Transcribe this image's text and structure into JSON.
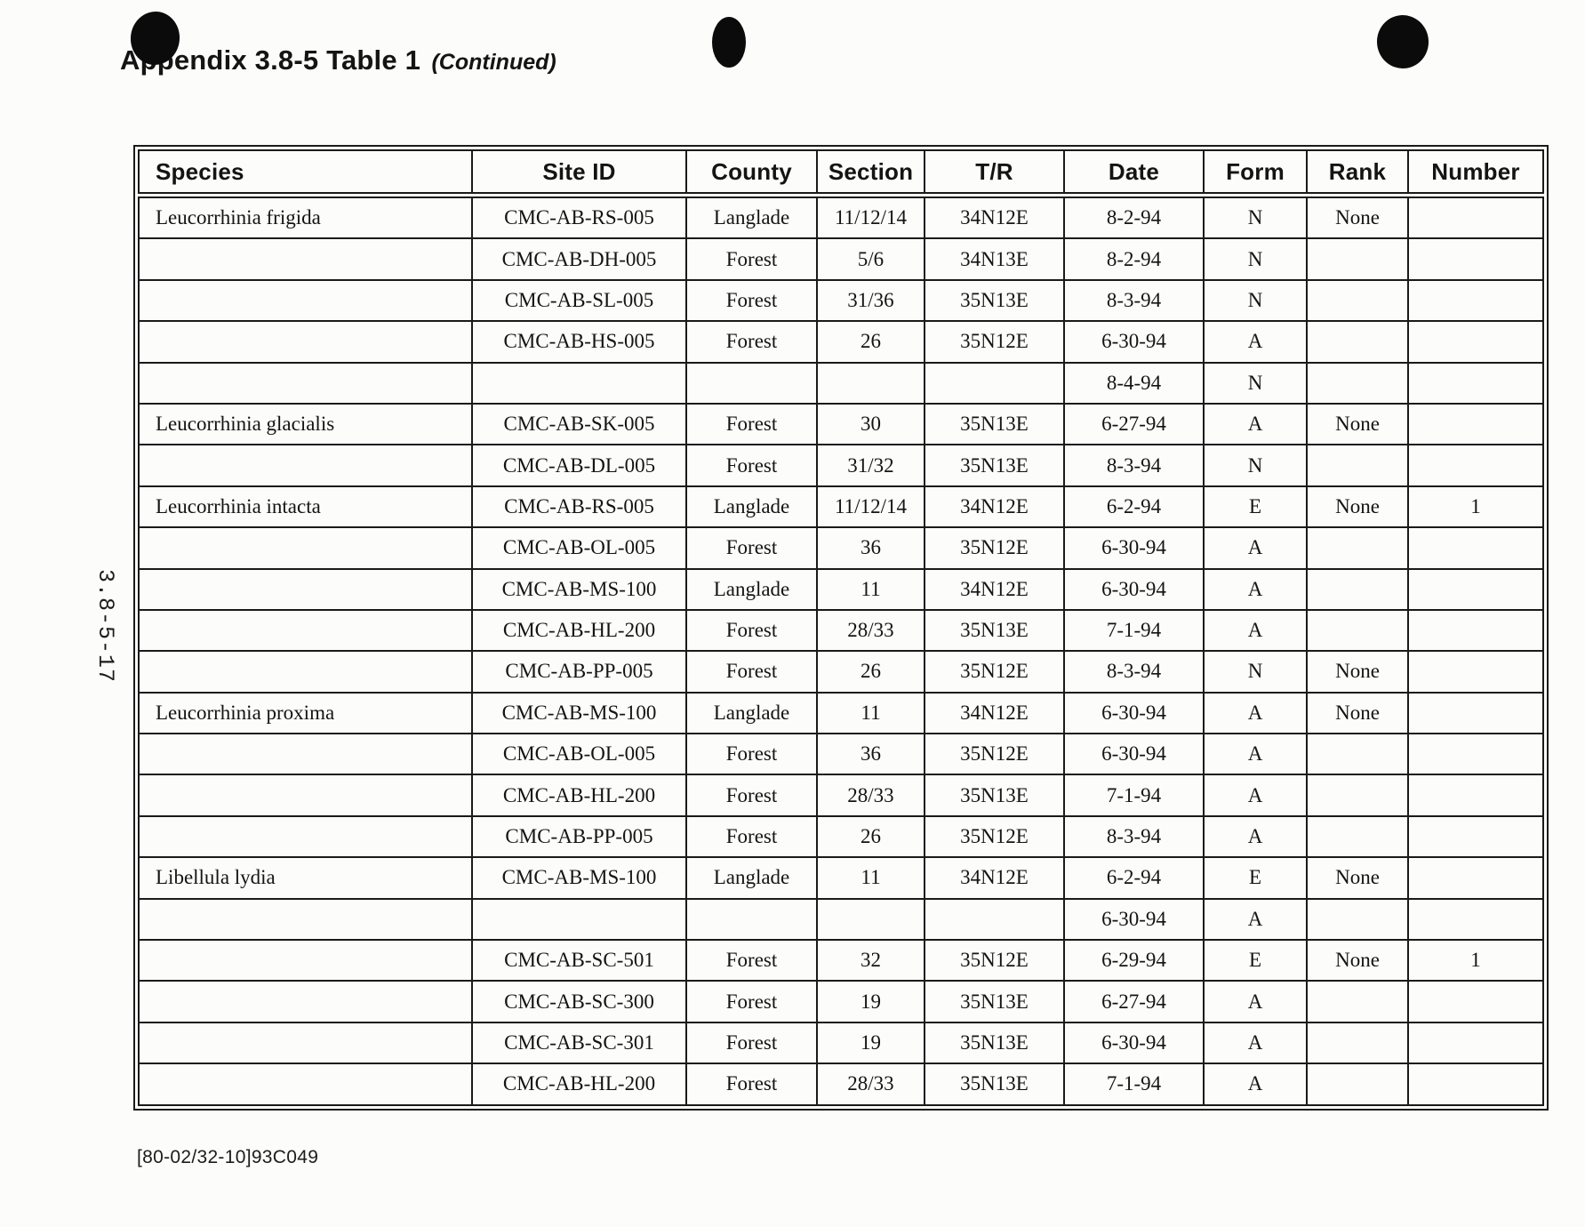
{
  "page": {
    "title": "Appendix 3.8-5 Table 1",
    "title_suffix": "(Continued)",
    "side_label": "3.8-5-17",
    "footer_code": "[80-02/32-10]93C049",
    "ink_color": "#141414",
    "paper_color": "#fcfcfa"
  },
  "table": {
    "columns": [
      "Species",
      "Site ID",
      "County",
      "Section",
      "T/R",
      "Date",
      "Form",
      "Rank",
      "Number"
    ],
    "rows": [
      [
        "Leucorrhinia frigida",
        "CMC-AB-RS-005",
        "Langlade",
        "11/12/14",
        "34N12E",
        "8-2-94",
        "N",
        "None",
        ""
      ],
      [
        "",
        "CMC-AB-DH-005",
        "Forest",
        "5/6",
        "34N13E",
        "8-2-94",
        "N",
        "",
        ""
      ],
      [
        "",
        "CMC-AB-SL-005",
        "Forest",
        "31/36",
        "35N13E",
        "8-3-94",
        "N",
        "",
        ""
      ],
      [
        "",
        "CMC-AB-HS-005",
        "Forest",
        "26",
        "35N12E",
        "6-30-94",
        "A",
        "",
        ""
      ],
      [
        "",
        "",
        "",
        "",
        "",
        "8-4-94",
        "N",
        "",
        ""
      ],
      [
        "Leucorrhinia glacialis",
        "CMC-AB-SK-005",
        "Forest",
        "30",
        "35N13E",
        "6-27-94",
        "A",
        "None",
        ""
      ],
      [
        "",
        "CMC-AB-DL-005",
        "Forest",
        "31/32",
        "35N13E",
        "8-3-94",
        "N",
        "",
        ""
      ],
      [
        "Leucorrhinia intacta",
        "CMC-AB-RS-005",
        "Langlade",
        "11/12/14",
        "34N12E",
        "6-2-94",
        "E",
        "None",
        "1"
      ],
      [
        "",
        "CMC-AB-OL-005",
        "Forest",
        "36",
        "35N12E",
        "6-30-94",
        "A",
        "",
        ""
      ],
      [
        "",
        "CMC-AB-MS-100",
        "Langlade",
        "11",
        "34N12E",
        "6-30-94",
        "A",
        "",
        ""
      ],
      [
        "",
        "CMC-AB-HL-200",
        "Forest",
        "28/33",
        "35N13E",
        "7-1-94",
        "A",
        "",
        ""
      ],
      [
        "",
        "CMC-AB-PP-005",
        "Forest",
        "26",
        "35N12E",
        "8-3-94",
        "N",
        "None",
        ""
      ],
      [
        "Leucorrhinia proxima",
        "CMC-AB-MS-100",
        "Langlade",
        "11",
        "34N12E",
        "6-30-94",
        "A",
        "None",
        ""
      ],
      [
        "",
        "CMC-AB-OL-005",
        "Forest",
        "36",
        "35N12E",
        "6-30-94",
        "A",
        "",
        ""
      ],
      [
        "",
        "CMC-AB-HL-200",
        "Forest",
        "28/33",
        "35N13E",
        "7-1-94",
        "A",
        "",
        ""
      ],
      [
        "",
        "CMC-AB-PP-005",
        "Forest",
        "26",
        "35N12E",
        "8-3-94",
        "A",
        "",
        ""
      ],
      [
        "Libellula lydia",
        "CMC-AB-MS-100",
        "Langlade",
        "11",
        "34N12E",
        "6-2-94",
        "E",
        "None",
        ""
      ],
      [
        "",
        "",
        "",
        "",
        "",
        "6-30-94",
        "A",
        "",
        ""
      ],
      [
        "",
        "CMC-AB-SC-501",
        "Forest",
        "32",
        "35N12E",
        "6-29-94",
        "E",
        "None",
        "1"
      ],
      [
        "",
        "CMC-AB-SC-300",
        "Forest",
        "19",
        "35N13E",
        "6-27-94",
        "A",
        "",
        ""
      ],
      [
        "",
        "CMC-AB-SC-301",
        "Forest",
        "19",
        "35N13E",
        "6-30-94",
        "A",
        "",
        ""
      ],
      [
        "",
        "CMC-AB-HL-200",
        "Forest",
        "28/33",
        "35N13E",
        "7-1-94",
        "A",
        "",
        ""
      ]
    ]
  }
}
